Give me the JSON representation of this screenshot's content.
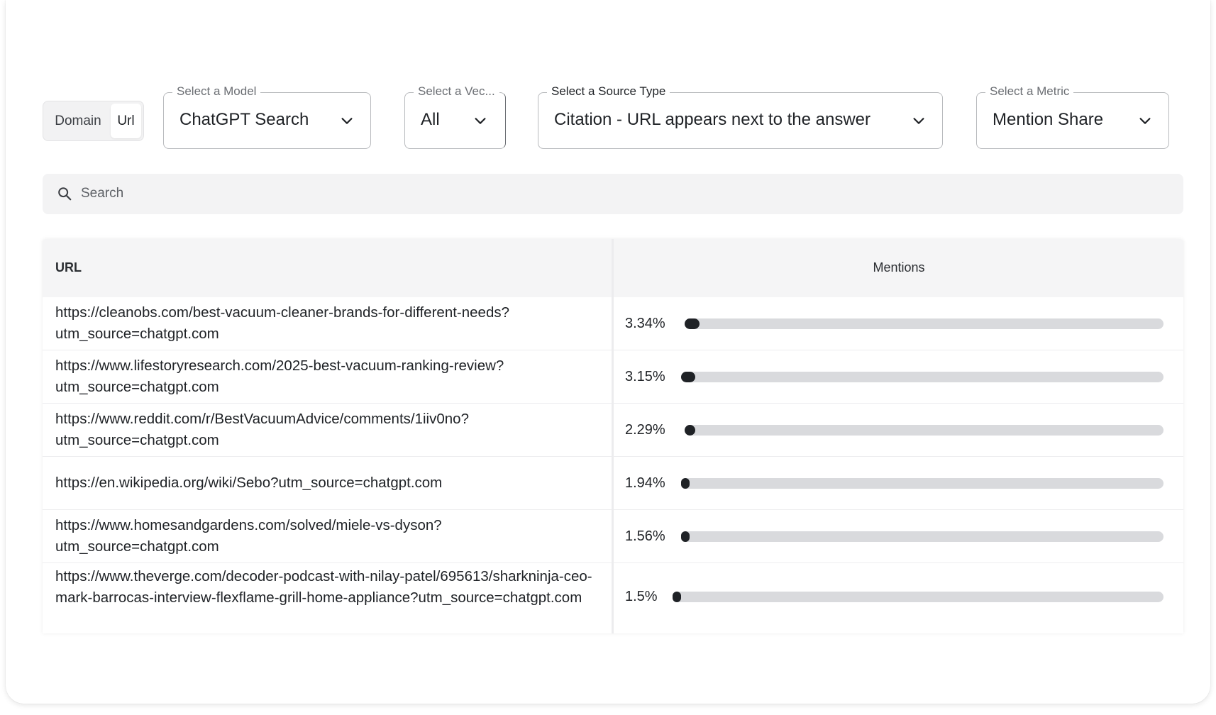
{
  "toggle": {
    "options": [
      "Domain",
      "Url"
    ],
    "selected": "Url"
  },
  "filters": {
    "model": {
      "label": "Select a Model",
      "value": "ChatGPT Search"
    },
    "vector": {
      "label": "Select a Vec...",
      "value": "All"
    },
    "source_type": {
      "label": "Select a Source Type",
      "value": "Citation - URL appears next to the answer"
    },
    "metric": {
      "label": "Select a Metric",
      "value": "Mention Share"
    }
  },
  "search": {
    "placeholder": "Search"
  },
  "table": {
    "headers": {
      "url": "URL",
      "mentions": "Mentions"
    },
    "rows": [
      {
        "url": "https://cleanobs.com/best-vacuum-cleaner-brands-for-different-needs?utm_source=chatgpt.com",
        "percent": "3.34%",
        "share": 0.0334
      },
      {
        "url": "https://www.lifestoryresearch.com/2025-best-vacuum-ranking-review?utm_source=chatgpt.com",
        "percent": "3.15%",
        "share": 0.0315
      },
      {
        "url": "https://www.reddit.com/r/BestVacuumAdvice/comments/1iiv0no?utm_source=chatgpt.com",
        "percent": "2.29%",
        "share": 0.0229
      },
      {
        "url": "https://en.wikipedia.org/wiki/Sebo?utm_source=chatgpt.com",
        "percent": "1.94%",
        "share": 0.0194
      },
      {
        "url": "https://www.homesandgardens.com/solved/miele-vs-dyson?utm_source=chatgpt.com",
        "percent": "1.56%",
        "share": 0.0156
      },
      {
        "url": "https://www.theverge.com/decoder-podcast-with-nilay-patel/695613/sharkninja-ceo-mark-barrocas-interview-flexflame-grill-home-appliance?utm_source=chatgpt.com",
        "percent": "1.5%",
        "share": 0.015
      }
    ]
  },
  "icons": {
    "search": "search-icon",
    "chevron": "chevron-down-icon"
  },
  "colors": {
    "bar_fill": "#1f2226",
    "bar_track": "#d9dadd",
    "header_bg": "#f5f5f6"
  }
}
